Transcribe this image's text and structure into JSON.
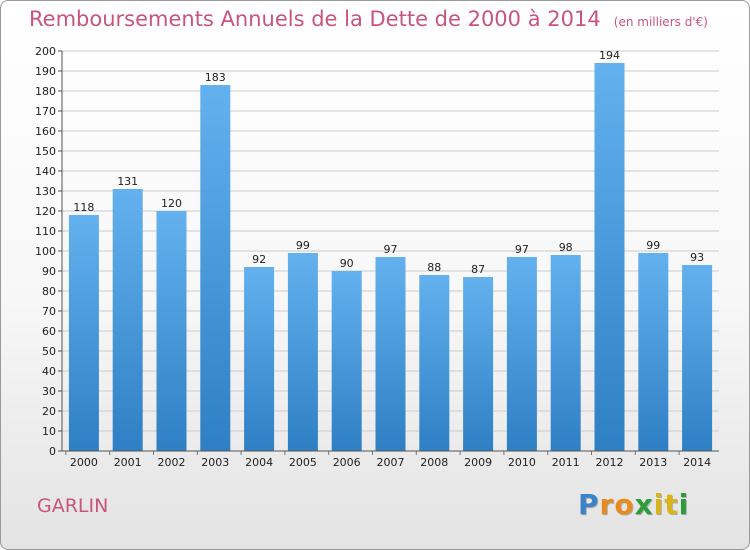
{
  "title": "Remboursements Annuels de la Dette de 2000 à 2014",
  "unit_note": "(en milliers d'€)",
  "place": "GARLIN",
  "brand": {
    "letters": [
      "P",
      "r",
      "o",
      "x",
      "i",
      "t",
      "i"
    ],
    "colors": [
      "#3a83c8",
      "#e98a1f",
      "#e98a1f",
      "#2f9c3a",
      "#d8b419",
      "#d8b419",
      "#2f9c3a"
    ]
  },
  "colors": {
    "bar": "#3d93dc",
    "text": "#c8557e",
    "grid": "#cccccc"
  },
  "chart_data": {
    "type": "bar",
    "categories": [
      "2000",
      "2001",
      "2002",
      "2003",
      "2004",
      "2005",
      "2006",
      "2007",
      "2008",
      "2009",
      "2010",
      "2011",
      "2012",
      "2013",
      "2014"
    ],
    "values": [
      118,
      131,
      120,
      183,
      92,
      99,
      90,
      97,
      88,
      87,
      97,
      98,
      194,
      99,
      93
    ],
    "ylim": [
      0,
      200
    ],
    "ytick_step": 10,
    "grid": true
  }
}
